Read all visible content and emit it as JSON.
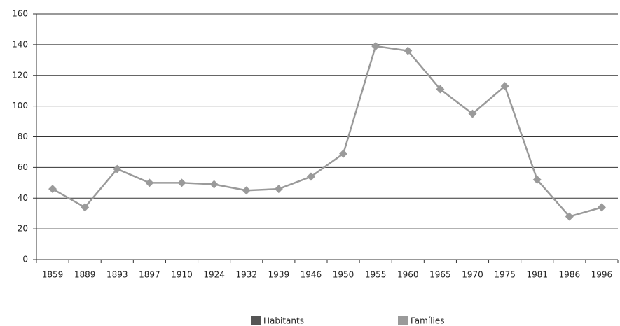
{
  "chart_data": {
    "type": "line",
    "categories": [
      "1859",
      "1889",
      "1893",
      "1897",
      "1910",
      "1924",
      "1932",
      "1939",
      "1946",
      "1950",
      "1955",
      "1960",
      "1965",
      "1970",
      "1975",
      "1981",
      "1986",
      "1996"
    ],
    "series": [
      {
        "name": "Habitants",
        "color": "#555555",
        "values": [
          null,
          null,
          null,
          null,
          null,
          null,
          null,
          null,
          null,
          null,
          null,
          null,
          null,
          null,
          null,
          null,
          null,
          null
        ]
      },
      {
        "name": "Famílies",
        "color": "#9a9a9a",
        "values": [
          46,
          34,
          59,
          50,
          50,
          49,
          45,
          46,
          54,
          69,
          139,
          136,
          111,
          95,
          113,
          52,
          28,
          34
        ]
      }
    ],
    "ylim": [
      0,
      160
    ],
    "yticks": [
      0,
      20,
      40,
      60,
      80,
      100,
      120,
      140,
      160
    ],
    "grid": true
  }
}
